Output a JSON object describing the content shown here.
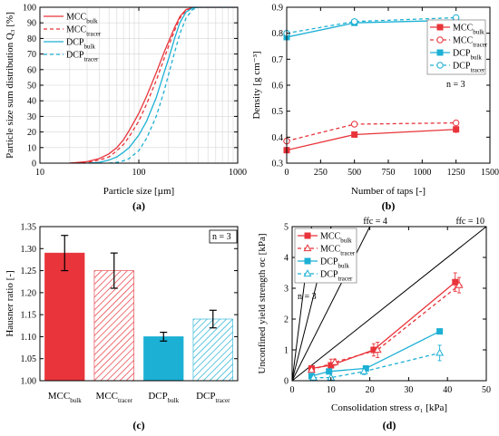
{
  "colors": {
    "red": "#e8343a",
    "blue": "#1cb0d4",
    "grid": "#d6d6d6"
  },
  "chart_data": [
    {
      "id": "a",
      "type": "line",
      "caption": "(a)",
      "xlabel": "Particle size [µm]",
      "ylabel": "Particle size sum distribution Q₃ [%]",
      "xscale": "log",
      "xlim": [
        10,
        1000
      ],
      "ylim": [
        0,
        100
      ],
      "xticks": [
        10,
        100,
        1000
      ],
      "xticklabels": [
        "10",
        "100",
        "1000"
      ],
      "yticks": [
        0,
        10,
        20,
        30,
        40,
        50,
        60,
        70,
        80,
        90,
        100
      ],
      "yticklabels": [
        "0",
        "10",
        "20",
        "30",
        "40",
        "50",
        "60",
        "70",
        "80",
        "90",
        "100"
      ],
      "grid": true,
      "legend": "top-left",
      "series": [
        {
          "name": "MCC",
          "sub": "bulk",
          "color": "red",
          "dash": false,
          "x": [
            20,
            30,
            40,
            50,
            60,
            70,
            80,
            100,
            120,
            150,
            180,
            200,
            230,
            260,
            300,
            350,
            400,
            500,
            1000
          ],
          "y": [
            0,
            1,
            3,
            6,
            10,
            15,
            21,
            32,
            43,
            58,
            71,
            78,
            87,
            94,
            98.5,
            99.8,
            100,
            100,
            100
          ]
        },
        {
          "name": "MCC",
          "sub": "tracer",
          "color": "red",
          "dash": true,
          "x": [
            20,
            30,
            40,
            50,
            60,
            70,
            80,
            100,
            120,
            150,
            180,
            200,
            230,
            260,
            300,
            350,
            400,
            500,
            1000
          ],
          "y": [
            0,
            0.5,
            2,
            4,
            8,
            12,
            17,
            27,
            38,
            53,
            67,
            75,
            85,
            93,
            98,
            99.7,
            100,
            100,
            100
          ]
        },
        {
          "name": "DCP",
          "sub": "bulk",
          "color": "blue",
          "dash": false,
          "x": [
            30,
            40,
            50,
            60,
            70,
            80,
            100,
            120,
            150,
            180,
            200,
            230,
            260,
            300,
            350,
            400,
            500,
            1000
          ],
          "y": [
            0,
            0.5,
            2,
            4,
            7,
            10,
            18,
            27,
            42,
            58,
            67,
            80,
            90,
            97,
            99.5,
            100,
            100,
            100
          ]
        },
        {
          "name": "DCP",
          "sub": "tracer",
          "color": "blue",
          "dash": true,
          "x": [
            50,
            60,
            70,
            80,
            100,
            120,
            150,
            180,
            200,
            230,
            260,
            300,
            350,
            400,
            500,
            1000
          ],
          "y": [
            0,
            0.5,
            1.5,
            3,
            8,
            16,
            30,
            46,
            57,
            71,
            83,
            93,
            98.5,
            100,
            100,
            100
          ]
        }
      ]
    },
    {
      "id": "b",
      "type": "line",
      "caption": "(b)",
      "xlabel": "Number of taps [-]",
      "ylabel": "Density [g cm⁻³]",
      "xlim": [
        0,
        1500
      ],
      "ylim": [
        0.3,
        0.9
      ],
      "xticks": [
        0,
        250,
        500,
        750,
        1000,
        1250,
        1500
      ],
      "xticklabels": [
        "0",
        "250",
        "500",
        "750",
        "1000",
        "1250",
        "1500"
      ],
      "yticks": [
        0.3,
        0.4,
        0.5,
        0.6,
        0.7,
        0.8,
        0.9
      ],
      "yticklabels": [
        "0.3",
        "0.4",
        "0.5",
        "0.6",
        "0.7",
        "0.8",
        "0.9"
      ],
      "grid": false,
      "legend": "right",
      "annotation": "n = 3",
      "series": [
        {
          "name": "MCC",
          "sub": "bulk",
          "color": "red",
          "dash": false,
          "marker": "square-filled",
          "x": [
            0,
            500,
            1250
          ],
          "y": [
            0.35,
            0.41,
            0.43
          ],
          "err": [
            0.02,
            0.005,
            0.015
          ]
        },
        {
          "name": "MCC",
          "sub": "tracer",
          "color": "red",
          "dash": true,
          "marker": "circle-open",
          "x": [
            0,
            500,
            1250
          ],
          "y": [
            0.385,
            0.45,
            0.455
          ],
          "err": [
            0.005,
            0.005,
            0.01
          ]
        },
        {
          "name": "DCP",
          "sub": "bulk",
          "color": "blue",
          "dash": false,
          "marker": "square-filled",
          "x": [
            0,
            500,
            1250
          ],
          "y": [
            0.785,
            0.84,
            0.85
          ],
          "err": [
            0.02,
            0.005,
            0.01
          ]
        },
        {
          "name": "DCP",
          "sub": "tracer",
          "color": "blue",
          "dash": true,
          "marker": "circle-open",
          "x": [
            0,
            500,
            1250
          ],
          "y": [
            0.8,
            0.845,
            0.86
          ],
          "err": [
            0.005,
            0.005,
            0.005
          ]
        }
      ]
    },
    {
      "id": "c",
      "type": "bar",
      "caption": "(c)",
      "xlabel": "",
      "ylabel": "Hausner ratio [-]",
      "ylim": [
        1.0,
        1.35
      ],
      "yticks": [
        1.0,
        1.05,
        1.1,
        1.15,
        1.2,
        1.25,
        1.3,
        1.35
      ],
      "yticklabels": [
        "1.00",
        "1.05",
        "1.10",
        "1.15",
        "1.20",
        "1.25",
        "1.30",
        "1.35"
      ],
      "annotation": "n = 3",
      "categories": [
        {
          "name": "MCC",
          "sub": "bulk"
        },
        {
          "name": "MCC",
          "sub": "tracer"
        },
        {
          "name": "DCP",
          "sub": "bulk"
        },
        {
          "name": "DCP",
          "sub": "tracer"
        }
      ],
      "values": [
        1.29,
        1.25,
        1.1,
        1.14
      ],
      "errors": [
        0.04,
        0.04,
        0.01,
        0.02
      ],
      "bar_colors": [
        "red",
        "red",
        "blue",
        "blue"
      ],
      "hatched": [
        false,
        true,
        false,
        true
      ]
    },
    {
      "id": "d",
      "type": "line",
      "caption": "(d)",
      "xlabel": "Consolidation stress σ₁ [kPa]",
      "ylabel": "Unconfined yield strength σc [kPa]",
      "xlim": [
        0,
        50
      ],
      "ylim": [
        0,
        5
      ],
      "xticks": [
        0,
        10,
        20,
        30,
        40,
        50
      ],
      "xticklabels": [
        "0",
        "10",
        "20",
        "30",
        "40",
        "50"
      ],
      "yticks": [
        0,
        1,
        2,
        3,
        4,
        5
      ],
      "yticklabels": [
        "0",
        "1",
        "2",
        "3",
        "4",
        "5"
      ],
      "grid": false,
      "legend": "top-left",
      "annotation": "n = 3",
      "flow_lines": [
        {
          "label": "ffc = 4",
          "ffc": 4,
          "labeled": true
        },
        {
          "label": "ffc = 10",
          "ffc": 10,
          "labeled": true
        },
        {
          "label": "",
          "ffc": 1,
          "labeled": false
        },
        {
          "label": "",
          "ffc": 2,
          "labeled": false
        }
      ],
      "series": [
        {
          "name": "MCC",
          "sub": "bulk",
          "color": "red",
          "dash": false,
          "marker": "square-filled",
          "x": [
            5,
            10,
            21,
            42
          ],
          "y": [
            0.4,
            0.5,
            1.0,
            3.2
          ],
          "xerr": [
            0.3,
            0.5,
            0.5,
            0.5
          ],
          "yerr": [
            0.05,
            0.2,
            0.2,
            0.3
          ]
        },
        {
          "name": "MCC",
          "sub": "tracer",
          "color": "red",
          "dash": true,
          "marker": "triangle-open",
          "x": [
            5,
            11,
            22,
            43
          ],
          "y": [
            0.35,
            0.6,
            1.0,
            3.1
          ],
          "xerr": [
            0.3,
            0.5,
            0.5,
            0.8
          ],
          "yerr": [
            0.05,
            0.1,
            0.25,
            0.25
          ]
        },
        {
          "name": "DCP",
          "sub": "bulk",
          "color": "blue",
          "dash": false,
          "marker": "square-filled",
          "x": [
            5,
            9.5,
            19,
            38
          ],
          "y": [
            0.15,
            0.3,
            0.4,
            1.6
          ],
          "xerr": [
            0.2,
            0.3,
            0.3,
            0.3
          ],
          "yerr": [
            0.03,
            0.05,
            0.05,
            0.05
          ]
        },
        {
          "name": "DCP",
          "sub": "tracer",
          "color": "blue",
          "dash": true,
          "marker": "triangle-open",
          "x": [
            5.5,
            10,
            18.5,
            38
          ],
          "y": [
            0.1,
            0.1,
            0.3,
            0.9
          ],
          "xerr": [
            0.3,
            0.3,
            0.3,
            0.5
          ],
          "yerr": [
            0.03,
            0.03,
            0.1,
            0.25
          ]
        }
      ]
    }
  ]
}
